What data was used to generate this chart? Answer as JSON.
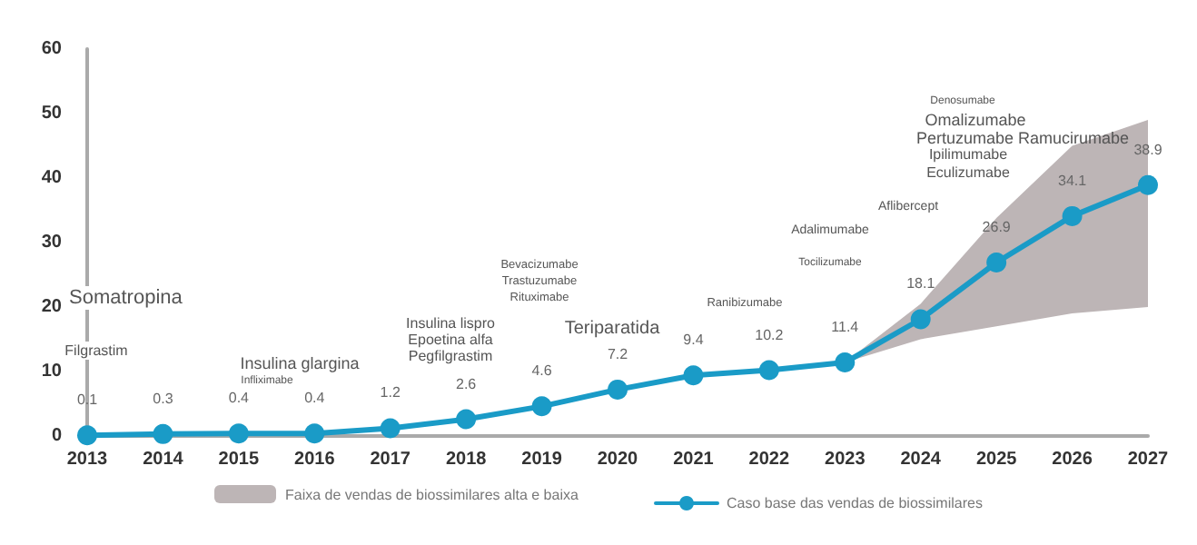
{
  "chart_data": {
    "type": "line",
    "categories": [
      "2013",
      "2014",
      "2015",
      "2016",
      "2017",
      "2018",
      "2019",
      "2020",
      "2021",
      "2022",
      "2023",
      "2024",
      "2025",
      "2026",
      "2027"
    ],
    "series": [
      {
        "name": "Caso base das vendas de biossimilares",
        "color": "#1a9bc7",
        "values": [
          0.1,
          0.3,
          0.4,
          0.4,
          1.2,
          2.6,
          4.6,
          7.2,
          9.4,
          10.2,
          11.4,
          18.1,
          26.9,
          34.1,
          38.9
        ],
        "lower": [
          null,
          null,
          null,
          null,
          null,
          null,
          null,
          null,
          null,
          null,
          11.4,
          15,
          17,
          19,
          20
        ],
        "upper": [
          null,
          null,
          null,
          null,
          null,
          null,
          null,
          null,
          null,
          null,
          11.4,
          20.5,
          33.8,
          45,
          49
        ]
      }
    ],
    "ylim": [
      0,
      60
    ],
    "yticks": [
      0,
      10,
      20,
      30,
      40,
      50,
      60
    ],
    "legend": "bottom",
    "marker": "circle",
    "line_style": "solid",
    "data_labels": true,
    "annotations": [
      "Faixa de vendas de biossimilares alta e baixa",
      "Somatropina",
      "Filgrastim",
      "Insulina glargina",
      "Infliximabe",
      "Insulina lispro",
      "Epoetina alfa",
      "Pegfilgrastim",
      "Bevacizumabe",
      "Trastuzumabe",
      "Rituximabe",
      "Teriparatida",
      "Ranibizumabe",
      "Adalimumabe",
      "Tocilizumabe",
      "Aflibercept",
      "Denosumabe",
      "Omalizumabe",
      "Pertuzumabe Ramucirumabe",
      "Ipilimumabe",
      "Eculizumabe"
    ]
  }
}
